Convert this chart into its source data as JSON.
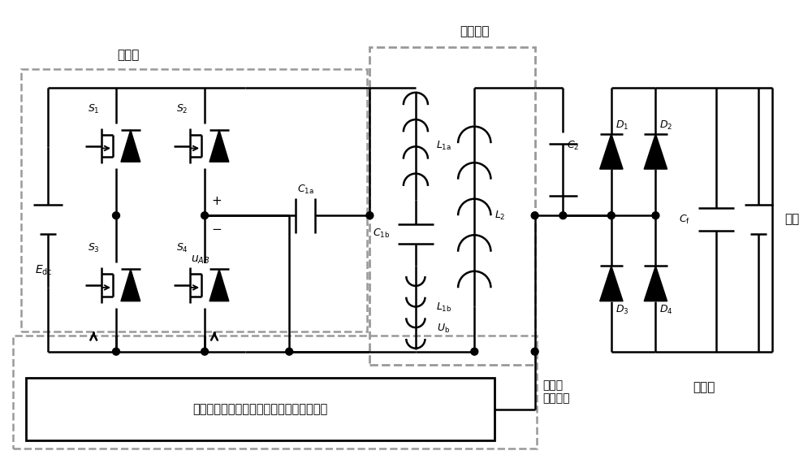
{
  "bg_color": "#ffffff",
  "lc": "#000000",
  "dc": "#999999",
  "labels": {
    "Edc": "$E_{\\mathrm{dc}}$",
    "uAB": "$u_{AB}$",
    "S1": "$S_1$",
    "S2": "$S_2$",
    "S3": "$S_3$",
    "S4": "$S_4$",
    "C1a": "$C_{\\mathrm{1a}}$",
    "C1b": "$C_{\\mathrm{1b}}$",
    "L1a": "$L_{\\mathrm{1a}}$",
    "L1b": "$L_{\\mathrm{1b}}$",
    "Ub": "$U_{\\mathrm{b}}$",
    "L2": "$L_2$",
    "C2": "$C_2$",
    "D1": "$D_1$",
    "D2": "$D_2$",
    "D3": "$D_3$",
    "D4": "$D_4$",
    "Cf": "$C_{\\mathrm{f}}$",
    "battery": "电池",
    "coupling": "耦合机构",
    "transmitter": "发射端",
    "receiver": "接收端",
    "control_box": "系统开关控制装置及异物检测信号处理电路",
    "judgment": "判定及\n控制部分"
  }
}
